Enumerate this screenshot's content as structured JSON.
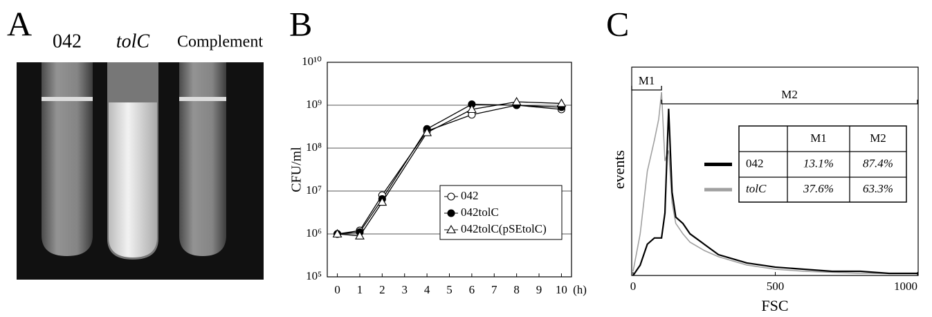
{
  "panel_labels": [
    "A",
    "B",
    "C"
  ],
  "photo_labels": [
    "042",
    "tolC",
    "Complement"
  ],
  "chart_data": [
    {
      "type": "line",
      "ylabel": "CFU/ml",
      "xlabel": "(h)",
      "log_y": true,
      "grid": true,
      "x": [
        0,
        1,
        2,
        4,
        6,
        8,
        10
      ],
      "xlim": [
        -0.45,
        10.45
      ],
      "xticks": [
        0,
        1,
        2,
        3,
        4,
        5,
        6,
        7,
        8,
        9,
        10
      ],
      "ylim": [
        100000,
        10000000000
      ],
      "yticks": [
        {
          "value": 100000,
          "label": "10⁵"
        },
        {
          "value": 1000000,
          "label": "10⁶"
        },
        {
          "value": 10000000,
          "label": "10⁷"
        },
        {
          "value": 100000000,
          "label": "10⁸"
        },
        {
          "value": 1000000000,
          "label": "10⁹"
        },
        {
          "value": 10000000000,
          "label": "10¹⁰"
        }
      ],
      "series": [
        {
          "name": "042",
          "color": "#000000",
          "marker": "open-circle",
          "values": [
            1000000,
            1200000,
            8000000,
            250000000,
            600000000,
            1000000000,
            800000000
          ]
        },
        {
          "name": "042tolC",
          "color": "#000000",
          "marker": "filled-circle",
          "values": [
            1000000,
            1100000,
            6500000,
            280000000,
            1050000000,
            1000000000,
            900000000
          ]
        },
        {
          "name": "042tolC(pSEtolC)",
          "color": "#000000",
          "marker": "open-triangle",
          "values": [
            1000000,
            900000,
            5500000,
            230000000,
            800000000,
            1200000000,
            1100000000
          ]
        }
      ]
    },
    {
      "type": "step",
      "xlabel": "FSC",
      "ylabel": "events",
      "xlim": [
        0,
        1000
      ],
      "xticks": [
        0,
        500,
        1000
      ],
      "ylim": [
        0,
        100
      ],
      "x": [
        0,
        25,
        50,
        75,
        90,
        100,
        112,
        125,
        137,
        150,
        175,
        200,
        250,
        300,
        350,
        400,
        500,
        600,
        700,
        800,
        900,
        1000
      ],
      "series": [
        {
          "name": "042",
          "color": "#000000",
          "values": [
            0,
            5,
            15,
            18,
            18,
            18,
            30,
            80,
            40,
            28,
            25,
            20,
            15,
            10,
            8,
            6,
            4,
            3,
            2,
            2,
            1,
            1
          ]
        },
        {
          "name": "tolC",
          "color": "#a0a0a0",
          "values": [
            2,
            20,
            50,
            65,
            75,
            88,
            55,
            60,
            35,
            25,
            20,
            16,
            12,
            9,
            7,
            5,
            3,
            2,
            1.5,
            1,
            1,
            1
          ]
        }
      ],
      "gates": [
        {
          "label": "M1",
          "range": [
            0,
            100
          ]
        },
        {
          "label": "M2",
          "range": [
            100,
            1000
          ]
        }
      ],
      "table": {
        "columns": [
          "M1",
          "M2"
        ],
        "rows": [
          [
            "13.1%",
            "87.4%"
          ],
          [
            "37.6%",
            "63.3%"
          ]
        ]
      }
    }
  ]
}
